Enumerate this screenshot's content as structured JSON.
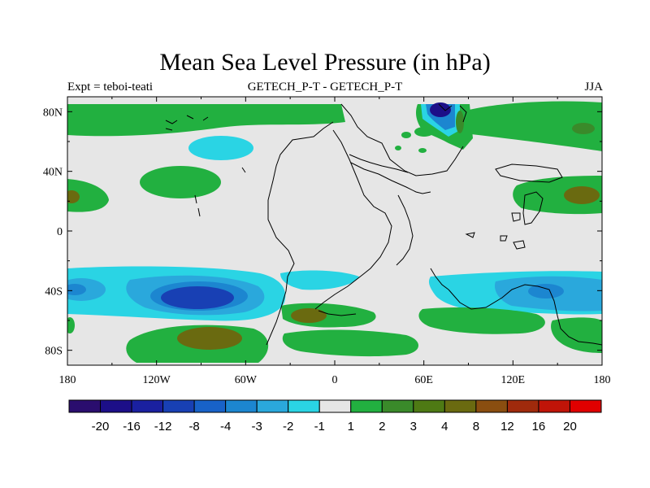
{
  "title": "Mean Sea Level Pressure (in hPa)",
  "subtitle_left": "Expt = teboi-teati",
  "subtitle_center": "GETECH_P-T - GETECH_P-T",
  "subtitle_right": "JJA",
  "map": {
    "lon_range": [
      -180,
      180
    ],
    "lat_range": [
      -90,
      90
    ],
    "x_ticks": [
      {
        "value": -180,
        "label": "180"
      },
      {
        "value": -120,
        "label": "120W"
      },
      {
        "value": -60,
        "label": "60W"
      },
      {
        "value": 0,
        "label": "0"
      },
      {
        "value": 60,
        "label": "60E"
      },
      {
        "value": 120,
        "label": "120E"
      },
      {
        "value": 180,
        "label": "180"
      }
    ],
    "y_ticks": [
      {
        "value": 80,
        "label": "80N"
      },
      {
        "value": 40,
        "label": "40N"
      },
      {
        "value": 0,
        "label": "0"
      },
      {
        "value": -40,
        "label": "40S"
      },
      {
        "value": -80,
        "label": "80S"
      }
    ]
  },
  "colorbar": {
    "colors": [
      "#2a0d6e",
      "#1c0f88",
      "#1a20a0",
      "#1840b4",
      "#1862c8",
      "#1c86d0",
      "#2aa8dc",
      "#2ad4e4",
      "#e6e6e6",
      "#22b040",
      "#3a8a2a",
      "#4e7a14",
      "#6a6a10",
      "#8a4e10",
      "#a02a0c",
      "#c01408",
      "#e00000"
    ],
    "labels": [
      "-20",
      "-16",
      "-12",
      "-8",
      "-4",
      "-3",
      "-2",
      "-1",
      "1",
      "2",
      "3",
      "4",
      "8",
      "12",
      "16",
      "20"
    ]
  },
  "fill_colors": {
    "background": "#e6e6e6",
    "green": "#22b040",
    "dark_green": "#3a8a2a",
    "olive": "#6a6a10",
    "light_cyan": "#2ad4e4",
    "mid_blue": "#2aa8dc",
    "blue": "#1c86d0",
    "dark_blue": "#1840b4",
    "navy": "#1c0f88"
  }
}
